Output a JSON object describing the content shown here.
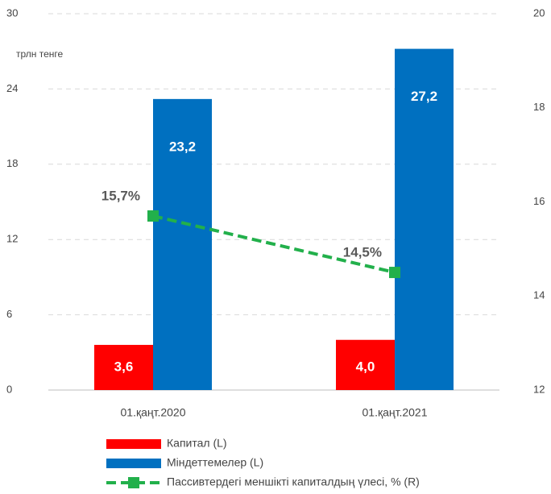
{
  "chart_data": {
    "type": "bar",
    "ylabel": "трлн тенге",
    "categories": [
      "01.қаңт.2020",
      "01.қаңт.2021"
    ],
    "series": [
      {
        "name": "Капитал (L)",
        "color": "#ff0000",
        "values": [
          3.6,
          4.0
        ],
        "value_labels": [
          "3,6",
          "4,0"
        ]
      },
      {
        "name": "Міндеттемелер (L)",
        "color": "#0070c0",
        "values": [
          23.2,
          27.2
        ],
        "value_labels": [
          "23,2",
          "27,2"
        ]
      },
      {
        "name": "Пассивтердегі меншікті капиталдың үлесі, % (R)",
        "color": "#22b04b",
        "type": "line",
        "axis": "y2",
        "values": [
          15.7,
          14.5
        ],
        "value_labels": [
          "15,7%",
          "14,5%"
        ]
      }
    ],
    "ylim": [
      0,
      30
    ],
    "yticks": [
      0,
      6,
      12,
      18,
      24,
      30
    ],
    "y2lim": [
      12,
      20
    ],
    "y2ticks": [
      12,
      14,
      16,
      18,
      20
    ],
    "grid": true,
    "legend": "bottom"
  }
}
